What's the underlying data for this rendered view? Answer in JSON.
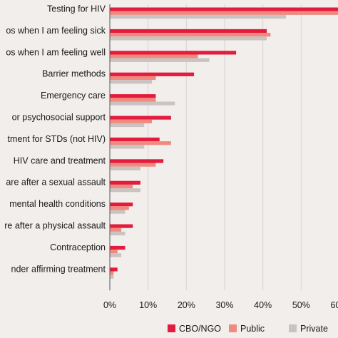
{
  "chart_data": {
    "type": "bar",
    "orientation": "horizontal",
    "categories": [
      "Testing for HIV",
      "os when I am feeling sick",
      "os when I am feeling well",
      "Barrier methods",
      "Emergency care",
      "or psychosocial support",
      "tment for STDs (not HIV)",
      "HIV care and treatment",
      "are after a sexual assault",
      "mental health conditions",
      "re after a physical assault",
      "Contraception",
      "nder affirming treatment"
    ],
    "series": [
      {
        "name": "CBO/NGO",
        "color": "#e31b3c",
        "values": [
          63,
          41,
          33,
          22,
          12,
          16,
          13,
          14,
          8,
          6,
          6,
          4,
          2
        ]
      },
      {
        "name": "Public",
        "color": "#f08a7e",
        "values": [
          63,
          42,
          23,
          12,
          12,
          11,
          16,
          12,
          6,
          5,
          3,
          2,
          1
        ]
      },
      {
        "name": "Private",
        "color": "#c9c3c1",
        "values": [
          46,
          41,
          26,
          11,
          17,
          9,
          9,
          8,
          8,
          4,
          4,
          3,
          1
        ]
      }
    ],
    "xlim": [
      0,
      60
    ],
    "x_ticks": [
      "0%",
      "10%",
      "20%",
      "30%",
      "40%",
      "50%",
      "60%"
    ],
    "grid": true,
    "legend_position": "bottom-right"
  }
}
